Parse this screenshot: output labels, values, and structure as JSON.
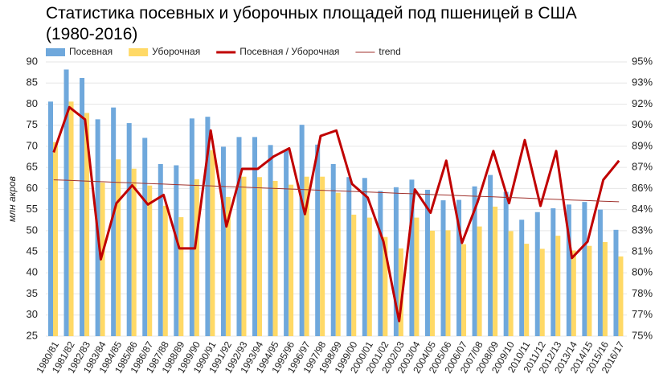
{
  "chart_data": {
    "type": "bar",
    "title": "Статистика посевных и уборочных площадей под пшеницей в США (1980-2016)",
    "y_label": "млн акров",
    "categories": [
      "1980/81",
      "1981/82",
      "1982/83",
      "1983/84",
      "1984/85",
      "1985/86",
      "1986/87",
      "1987/88",
      "1988/89",
      "1989/90",
      "1990/91",
      "1991/92",
      "1992/93",
      "1993/94",
      "1994/95",
      "1995/96",
      "1996/97",
      "1997/98",
      "1998/99",
      "1999/00",
      "2000/01",
      "2001/02",
      "2002/03",
      "2003/04",
      "2004/05",
      "2005/06",
      "2006/07",
      "2007/08",
      "2008/09",
      "2009/10",
      "2010/11",
      "2011/12",
      "2012/13",
      "2013/14",
      "2014/15",
      "2015/16",
      "2016/17"
    ],
    "series": [
      {
        "name": "Посевная",
        "type": "bar",
        "color": "#6fa8dc",
        "values": [
          80.6,
          88.2,
          86.2,
          76.4,
          79.2,
          75.5,
          72.0,
          65.8,
          65.5,
          76.6,
          77.0,
          69.9,
          72.2,
          72.2,
          70.3,
          69.0,
          75.1,
          70.4,
          65.8,
          62.7,
          62.5,
          59.4,
          60.3,
          62.1,
          59.7,
          57.2,
          57.3,
          60.5,
          63.2,
          59.2,
          52.6,
          54.4,
          55.3,
          56.2,
          56.8,
          55.0,
          50.2
        ]
      },
      {
        "name": "Уборочная",
        "type": "bar",
        "color": "#ffd966",
        "values": [
          71.0,
          80.6,
          77.9,
          61.4,
          66.9,
          64.7,
          60.7,
          55.9,
          53.2,
          62.2,
          69.1,
          58.0,
          62.8,
          62.7,
          61.8,
          60.9,
          62.8,
          62.8,
          59.0,
          53.8,
          53.1,
          48.5,
          45.8,
          53.1,
          50.0,
          50.1,
          46.8,
          51.0,
          55.7,
          49.9,
          46.9,
          45.7,
          48.8,
          45.3,
          46.4,
          47.3,
          43.9
        ]
      },
      {
        "name": "Посевная / Уборочная",
        "type": "line",
        "axis": "y2",
        "color": "#c00000",
        "values": [
          88.4,
          91.7,
          90.8,
          80.6,
          84.7,
          86.0,
          84.6,
          85.3,
          81.4,
          81.4,
          90.0,
          83.0,
          87.2,
          87.2,
          88.1,
          88.7,
          83.9,
          89.6,
          90.0,
          86.1,
          85.1,
          81.9,
          76.1,
          85.7,
          84.0,
          87.8,
          81.8,
          84.8,
          88.5,
          84.7,
          89.3,
          84.5,
          88.5,
          80.7,
          81.9,
          86.4,
          87.8
        ]
      },
      {
        "name": "trend",
        "type": "trend",
        "axis": "y2",
        "color": "#a0322d",
        "values": [
          86.4,
          86.36,
          86.31,
          86.27,
          86.22,
          86.18,
          86.13,
          86.09,
          86.04,
          86.0,
          85.96,
          85.91,
          85.87,
          85.82,
          85.78,
          85.73,
          85.69,
          85.64,
          85.6,
          85.56,
          85.51,
          85.47,
          85.42,
          85.38,
          85.33,
          85.29,
          85.24,
          85.2,
          85.16,
          85.11,
          85.07,
          85.02,
          84.98,
          84.93,
          84.89,
          84.84,
          84.8
        ]
      }
    ],
    "ylim": [
      25,
      90
    ],
    "yticks": [
      25,
      30,
      35,
      40,
      45,
      50,
      55,
      60,
      65,
      70,
      75,
      80,
      85,
      90
    ],
    "y2lim": [
      75,
      95
    ],
    "y2ticks": [
      {
        "value": 75,
        "label": "75%"
      },
      {
        "value": 76.54,
        "label": "77%"
      },
      {
        "value": 78.08,
        "label": "78%"
      },
      {
        "value": 79.62,
        "label": "80%"
      },
      {
        "value": 81.15,
        "label": "81%"
      },
      {
        "value": 82.69,
        "label": "83%"
      },
      {
        "value": 84.23,
        "label": "84%"
      },
      {
        "value": 85.77,
        "label": "86%"
      },
      {
        "value": 87.31,
        "label": "87%"
      },
      {
        "value": 88.85,
        "label": "89%"
      },
      {
        "value": 90.38,
        "label": "90%"
      },
      {
        "value": 91.92,
        "label": "92%"
      },
      {
        "value": 93.46,
        "label": "93%"
      },
      {
        "value": 95,
        "label": "95%"
      }
    ],
    "grid": true,
    "legend": "top"
  }
}
